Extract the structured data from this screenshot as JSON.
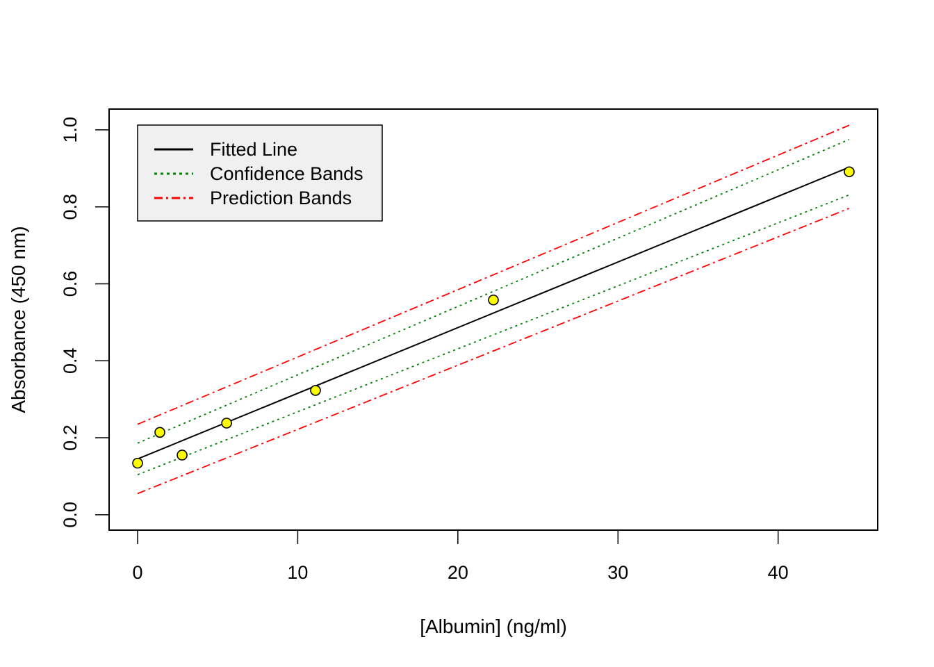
{
  "chart_data": {
    "type": "scatter",
    "title": "",
    "xlabel": "[Albumin] (ng/ml)",
    "ylabel": "Absorbance (450 nm)",
    "xlim": [
      -1.78,
      46.22
    ],
    "ylim": [
      -0.04,
      1.054
    ],
    "xticks": [
      0,
      10,
      20,
      30,
      40
    ],
    "yticks": [
      0.0,
      0.2,
      0.4,
      0.6,
      0.8,
      1.0
    ],
    "xtick_labels": [
      "0",
      "10",
      "20",
      "30",
      "40"
    ],
    "ytick_labels": [
      "0.0",
      "0.2",
      "0.4",
      "0.6",
      "0.8",
      "1.0"
    ],
    "grid": false,
    "legend_position": "top-left",
    "points": {
      "x": [
        0,
        1.39,
        2.78,
        5.56,
        11.11,
        22.22,
        44.44
      ],
      "y": [
        0.134,
        0.214,
        0.155,
        0.238,
        0.323,
        0.558,
        0.891
      ],
      "fill": "#FFFF00",
      "stroke": "#000000"
    },
    "series": [
      {
        "name": "Fitted Line",
        "color": "#000000",
        "style": "solid",
        "x": [
          0,
          44.44
        ],
        "y": [
          0.145,
          0.903
        ]
      },
      {
        "name": "Confidence Bands",
        "color": "#008000",
        "style": "dotted",
        "x": [
          0,
          44.44
        ],
        "y": [
          0.186,
          0.975
        ]
      },
      {
        "name": "",
        "color": "#008000",
        "style": "dotted",
        "x": [
          0,
          44.44
        ],
        "y": [
          0.104,
          0.831
        ]
      },
      {
        "name": "Prediction Bands",
        "color": "#FF0000",
        "style": "dashdot",
        "x": [
          0,
          44.44
        ],
        "y": [
          0.235,
          1.012
        ]
      },
      {
        "name": "",
        "color": "#FF0000",
        "style": "dashdot",
        "x": [
          0,
          44.44
        ],
        "y": [
          0.055,
          0.796
        ]
      }
    ],
    "legend": [
      {
        "label": "Fitted Line",
        "color": "#000000",
        "style": "solid"
      },
      {
        "label": "Confidence Bands",
        "color": "#008000",
        "style": "dotted"
      },
      {
        "label": "Prediction Bands",
        "color": "#FF0000",
        "style": "dashdot"
      }
    ]
  }
}
